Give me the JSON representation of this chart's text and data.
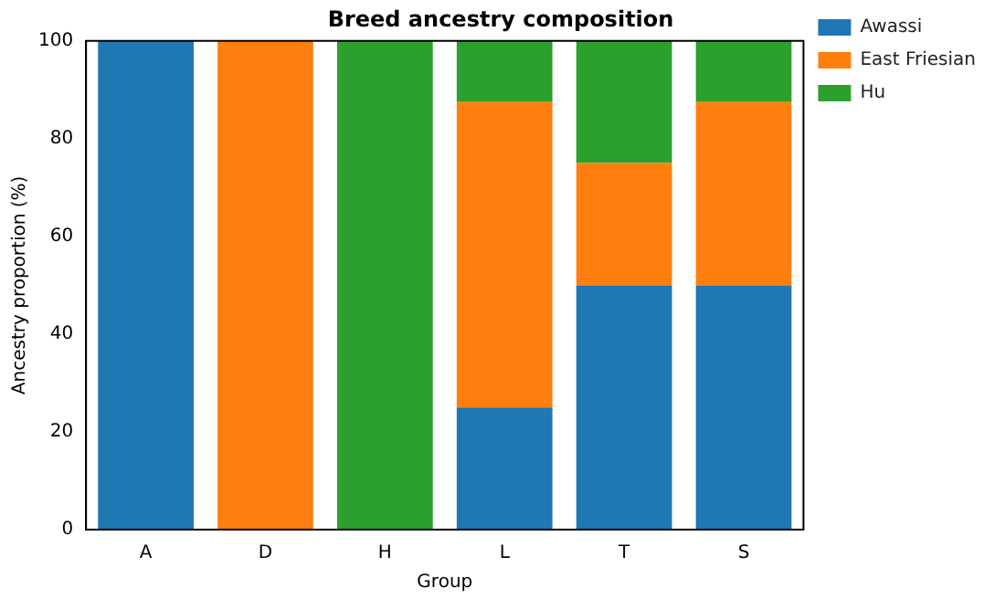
{
  "chart_data": {
    "type": "bar",
    "title": "Breed ancestry composition",
    "xlabel": "Group",
    "ylabel": "Ancestry proportion (%)",
    "categories": [
      "A",
      "D",
      "H",
      "L",
      "T",
      "S"
    ],
    "series": [
      {
        "name": "Awassi",
        "color": "#1f77b4",
        "values": [
          100,
          0,
          0,
          25,
          50,
          50
        ]
      },
      {
        "name": "East Friesian",
        "color": "#ff7f0e",
        "values": [
          0,
          100,
          0,
          62.5,
          25,
          37.5
        ]
      },
      {
        "name": "Hu",
        "color": "#2ca02c",
        "values": [
          0,
          0,
          100,
          12.5,
          25,
          12.5
        ]
      }
    ],
    "stacked": true,
    "ylim": [
      0,
      100
    ],
    "yticks": [
      0,
      20,
      40,
      60,
      80,
      100
    ],
    "grid": false,
    "legend": "top right"
  }
}
